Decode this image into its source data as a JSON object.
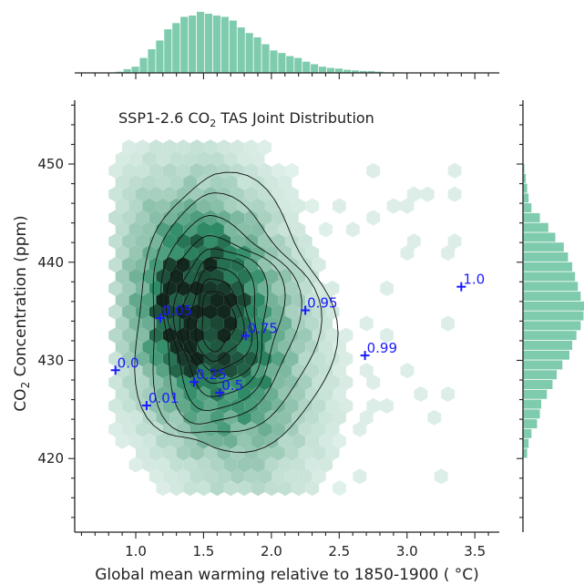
{
  "chart_data": {
    "type": "scatter",
    "title_main": "SSP1-2.6 CO",
    "title_sub": "2",
    "title_rest": " TAS Joint Distribution",
    "xlabel": "Global mean warming relative to 1850-1900 ( °C)",
    "ylabel_main": "CO",
    "ylabel_sub": "2",
    "ylabel_rest": " Concentration (ppm)",
    "xlim": [
      0.55,
      3.68
    ],
    "ylim": [
      412.5,
      456.5
    ],
    "x_ticks": [
      1.0,
      1.5,
      2.0,
      2.5,
      3.0,
      3.5
    ],
    "x_tick_labels": [
      "1.0",
      "1.5",
      "2.0",
      "2.5",
      "3.0",
      "3.5"
    ],
    "y_ticks": [
      420,
      430,
      440,
      450
    ],
    "y_tick_labels": [
      "420",
      "430",
      "440",
      "450"
    ],
    "grid": false,
    "quantile_points": [
      {
        "x": 0.85,
        "y": 429.0,
        "label": "0.0"
      },
      {
        "x": 1.08,
        "y": 425.4,
        "label": "0.01"
      },
      {
        "x": 1.18,
        "y": 434.3,
        "label": "0.05"
      },
      {
        "x": 1.43,
        "y": 427.8,
        "label": "0.25"
      },
      {
        "x": 1.62,
        "y": 426.7,
        "label": "0.5"
      },
      {
        "x": 1.81,
        "y": 432.5,
        "label": "0.75"
      },
      {
        "x": 2.25,
        "y": 435.1,
        "label": "0.95"
      },
      {
        "x": 2.69,
        "y": 430.5,
        "label": "0.99"
      },
      {
        "x": 3.4,
        "y": 437.5,
        "label": "1.0"
      }
    ],
    "x_marginal_histogram": {
      "bin_edges": [
        0.85,
        0.91,
        0.97,
        1.03,
        1.09,
        1.15,
        1.21,
        1.27,
        1.33,
        1.39,
        1.45,
        1.51,
        1.57,
        1.63,
        1.69,
        1.75,
        1.81,
        1.87,
        1.93,
        1.99,
        2.05,
        2.11,
        2.17,
        2.23,
        2.29,
        2.35,
        2.41,
        2.47,
        2.53,
        2.59,
        2.65,
        2.71,
        2.77,
        2.83,
        2.89,
        2.95
      ],
      "counts": [
        2,
        6,
        10,
        24,
        38,
        52,
        70,
        80,
        90,
        92,
        98,
        95,
        92,
        90,
        84,
        73,
        64,
        57,
        46,
        36,
        32,
        27,
        24,
        18,
        14,
        10,
        8,
        7,
        5,
        4,
        3,
        3,
        2,
        1,
        1
      ]
    },
    "y_marginal_histogram": {
      "bin_edges": [
        420,
        421,
        422,
        423,
        424,
        425,
        426,
        427,
        428,
        429,
        430,
        431,
        432,
        433,
        434,
        435,
        436,
        437,
        438,
        439,
        440,
        441,
        442,
        443,
        444,
        445,
        446,
        447,
        448,
        449,
        450
      ],
      "counts": [
        6,
        8,
        12,
        20,
        24,
        26,
        34,
        42,
        48,
        56,
        66,
        70,
        76,
        82,
        86,
        88,
        82,
        78,
        74,
        70,
        64,
        58,
        46,
        36,
        24,
        12,
        8,
        6,
        4,
        2
      ]
    }
  },
  "style": {
    "hist_color": "#7fcbae",
    "hex_color": "#2e8b65",
    "point_color": "#1a1aff",
    "axis_color": "#222222"
  }
}
